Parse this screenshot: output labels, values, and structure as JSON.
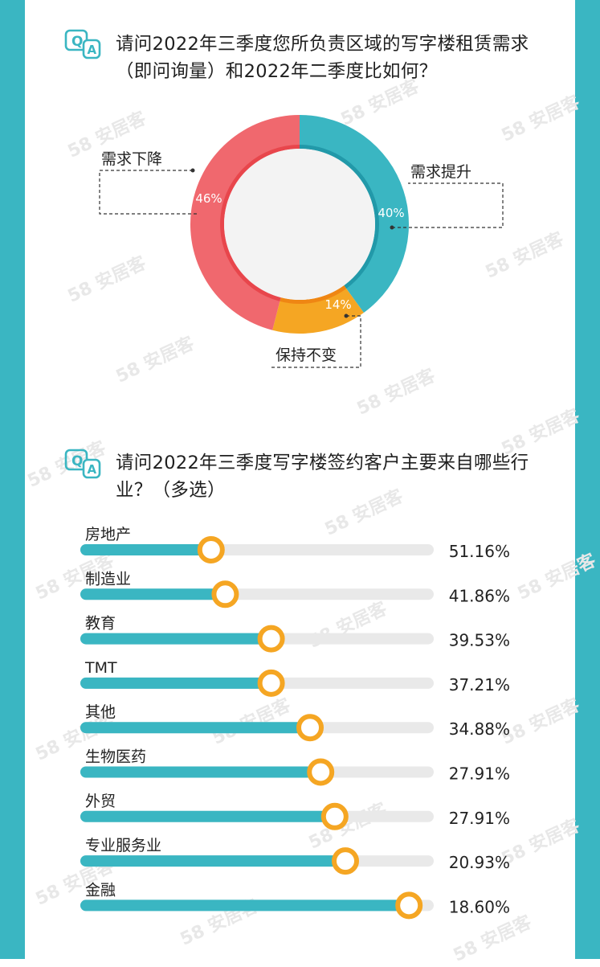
{
  "watermark": "58 安居客",
  "colors": {
    "teal": "#3ab6c2",
    "red": "#f0686e",
    "orange": "#f5a623",
    "track": "#e9e9e9"
  },
  "sections": [
    {
      "badge": "QA",
      "title": "请问2022年三季度您所负责区域的写字楼租赁需求（即问询量）和2022年二季度比如何？"
    },
    {
      "badge": "QA",
      "title": "请问2022年三季度写字楼签约客户主要来自哪些行业？（多选）"
    }
  ],
  "chart_data": [
    {
      "type": "pie",
      "style": "donut",
      "slices": [
        {
          "label": "需求提升",
          "value": 40,
          "value_label": "40%",
          "color": "#3ab6c2"
        },
        {
          "label": "保持不变",
          "value": 14,
          "value_label": "14%",
          "color": "#f5a623"
        },
        {
          "label": "需求下降",
          "value": 46,
          "value_label": "46%",
          "color": "#f0686e"
        }
      ]
    },
    {
      "type": "bar",
      "orientation": "horizontal",
      "categories": [
        "房地产",
        "制造业",
        "教育",
        "TMT",
        "其他",
        "生物医药",
        "外贸",
        "专业服务业",
        "金融"
      ],
      "values": [
        51.16,
        41.86,
        39.53,
        37.21,
        34.88,
        27.91,
        27.91,
        20.93,
        18.6
      ],
      "value_labels": [
        "51.16%",
        "41.86%",
        "39.53%",
        "37.21%",
        "34.88%",
        "27.91%",
        "27.91%",
        "20.93%",
        "18.60%"
      ],
      "marker_fractions": [
        0.37,
        0.41,
        0.54,
        0.54,
        0.65,
        0.68,
        0.72,
        0.75,
        0.93
      ]
    }
  ]
}
